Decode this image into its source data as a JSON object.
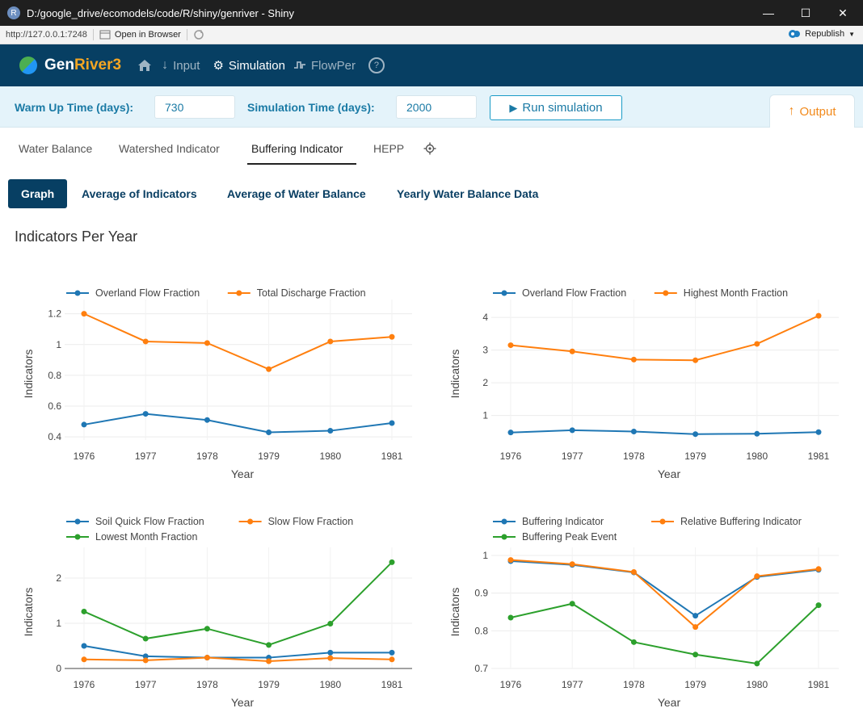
{
  "window": {
    "title": "D:/google_drive/ecomodels/code/R/shiny/genriver - Shiny",
    "app_icon": "R",
    "minimize_icon": "minimize-icon",
    "maximize_icon": "maximize-icon",
    "close_icon": "close-icon"
  },
  "viewer": {
    "url": "http://127.0.0.1:7248",
    "open_in_browser": "Open in Browser",
    "republish": "Republish"
  },
  "navbar": {
    "brand_main": "Gen",
    "brand_accent": "River3",
    "links": [
      {
        "label": "",
        "icon": "home-icon"
      },
      {
        "label": "Input",
        "icon": "arrow-down-icon"
      },
      {
        "label": "Simulation",
        "icon": "gears-icon"
      },
      {
        "label": "FlowPer",
        "icon": "wave-icon"
      }
    ],
    "help_icon": "?"
  },
  "settings": {
    "warmup_label": "Warm Up Time (days):",
    "warmup_value": "730",
    "simtime_label": "Simulation Time (days):",
    "simtime_value": "2000",
    "run_button": "Run simulation",
    "output_tab": "Output"
  },
  "tabs": [
    "Water Balance",
    "Watershed Indicator",
    "Buffering Indicator",
    "HEPP"
  ],
  "subtabs": [
    "Graph",
    "Average of Indicators",
    "Average of Water Balance",
    "Yearly Water Balance Data"
  ],
  "section_title": "Indicators Per Year",
  "colors": {
    "blue": "#1f77b4",
    "orange": "#ff7f0e",
    "green": "#2ca02c",
    "navbar": "#073f63",
    "accent": "#f28a1c"
  },
  "chart_data": [
    {
      "type": "line",
      "x": [
        1976,
        1977,
        1978,
        1979,
        1980,
        1981
      ],
      "xlabel": "Year",
      "ylabel": "Indicators",
      "ylim": [
        0.38,
        1.24
      ],
      "yticks": [
        0.4,
        0.6,
        0.8,
        1,
        1.2
      ],
      "ytick_labels": [
        "0.4",
        "0.6",
        "0.8",
        "1",
        "1.2"
      ],
      "series": [
        {
          "name": "Overland Flow Fraction",
          "color": "#1f77b4",
          "values": [
            0.48,
            0.55,
            0.51,
            0.43,
            0.44,
            0.49
          ]
        },
        {
          "name": "Total Discharge Fraction",
          "color": "#ff7f0e",
          "values": [
            1.2,
            1.02,
            1.01,
            0.84,
            1.02,
            1.05
          ]
        }
      ],
      "legend_rows": [
        [
          "Overland Flow Fraction",
          "Total Discharge Fraction"
        ]
      ]
    },
    {
      "type": "line",
      "x": [
        1976,
        1977,
        1978,
        1979,
        1980,
        1981
      ],
      "xlabel": "Year",
      "ylabel": "Indicators",
      "ylim": [
        0.25,
        4.3
      ],
      "yticks": [
        1,
        2,
        3,
        4
      ],
      "ytick_labels": [
        "1",
        "2",
        "3",
        "4"
      ],
      "series": [
        {
          "name": "Overland Flow Fraction",
          "color": "#1f77b4",
          "values": [
            0.48,
            0.55,
            0.51,
            0.43,
            0.44,
            0.49
          ]
        },
        {
          "name": "Highest Month Fraction",
          "color": "#ff7f0e",
          "values": [
            3.15,
            2.96,
            2.71,
            2.69,
            3.19,
            4.05
          ]
        }
      ],
      "legend_rows": [
        [
          "Overland Flow Fraction",
          "Highest Month Fraction"
        ]
      ]
    },
    {
      "type": "line",
      "x": [
        1976,
        1977,
        1978,
        1979,
        1980,
        1981
      ],
      "xlabel": "Year",
      "ylabel": "Indicators",
      "ylim": [
        0,
        2.5
      ],
      "yticks": [
        0,
        1,
        2
      ],
      "ytick_labels": [
        "0",
        "1",
        "2"
      ],
      "series": [
        {
          "name": "Soil Quick Flow Fraction",
          "color": "#1f77b4",
          "values": [
            0.5,
            0.27,
            0.24,
            0.24,
            0.35,
            0.35
          ]
        },
        {
          "name": "Slow Flow Fraction",
          "color": "#ff7f0e",
          "values": [
            0.2,
            0.18,
            0.24,
            0.16,
            0.23,
            0.2
          ]
        },
        {
          "name": "Lowest Month Fraction",
          "color": "#2ca02c",
          "values": [
            1.26,
            0.66,
            0.88,
            0.52,
            0.99,
            2.35
          ]
        }
      ],
      "legend_rows": [
        [
          "Soil Quick Flow Fraction",
          "Slow Flow Fraction"
        ],
        [
          "Lowest Month Fraction"
        ]
      ]
    },
    {
      "type": "line",
      "x": [
        1976,
        1977,
        1978,
        1979,
        1980,
        1981
      ],
      "xlabel": "Year",
      "ylabel": "Indicators",
      "ylim": [
        0.7,
        1.0
      ],
      "yticks": [
        0.7,
        0.8,
        0.9,
        1
      ],
      "ytick_labels": [
        "0.7",
        "0.8",
        "0.9",
        "1"
      ],
      "series": [
        {
          "name": "Buffering Indicator",
          "color": "#1f77b4",
          "values": [
            0.985,
            0.975,
            0.955,
            0.84,
            0.943,
            0.962
          ]
        },
        {
          "name": "Relative Buffering Indicator",
          "color": "#ff7f0e",
          "values": [
            0.988,
            0.977,
            0.956,
            0.81,
            0.945,
            0.964
          ]
        },
        {
          "name": "Buffering Peak Event",
          "color": "#2ca02c",
          "values": [
            0.835,
            0.872,
            0.77,
            0.737,
            0.713,
            0.868
          ]
        }
      ],
      "legend_rows": [
        [
          "Buffering Indicator",
          "Relative Buffering Indicator"
        ],
        [
          "Buffering Peak Event"
        ]
      ]
    }
  ]
}
